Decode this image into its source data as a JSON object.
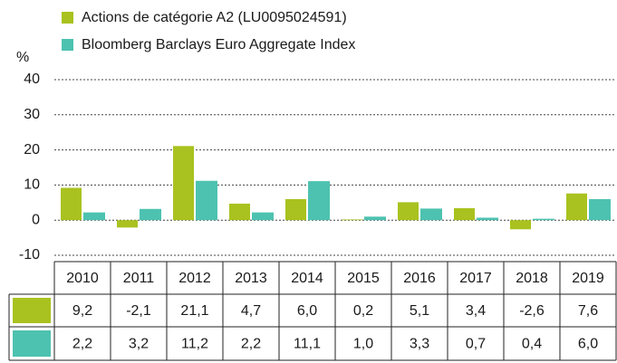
{
  "chart_data": {
    "type": "bar",
    "y_label": "%",
    "categories": [
      "2010",
      "2011",
      "2012",
      "2013",
      "2014",
      "2015",
      "2016",
      "2017",
      "2018",
      "2019"
    ],
    "series": [
      {
        "name": "Actions de catégorie A2 (LU0095024591)",
        "color": "#a9c21f",
        "values": [
          9.2,
          -2.1,
          21.1,
          4.7,
          6.0,
          0.2,
          5.1,
          3.4,
          -2.6,
          7.6
        ],
        "value_labels": [
          "9,2",
          "-2,1",
          "21,1",
          "4,7",
          "6,0",
          "0,2",
          "5,1",
          "3,4",
          "-2,6",
          "7,6"
        ]
      },
      {
        "name": "Bloomberg Barclays Euro Aggregate Index",
        "color": "#4dc2b0",
        "values": [
          2.2,
          3.2,
          11.2,
          2.2,
          11.1,
          1.0,
          3.3,
          0.7,
          0.4,
          6.0
        ],
        "value_labels": [
          "2,2",
          "3,2",
          "11,2",
          "2,2",
          "11,1",
          "1,0",
          "3,3",
          "0,7",
          "0,4",
          "6,0"
        ]
      }
    ],
    "ylim": [
      -10,
      40
    ],
    "yticks": [
      -10,
      0,
      10,
      20,
      30,
      40
    ],
    "grid": true
  }
}
